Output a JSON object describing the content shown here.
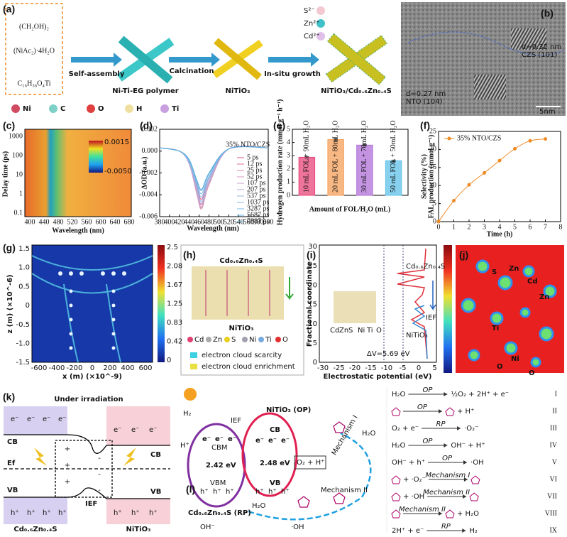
{
  "figure": {
    "panel_labels": [
      "(a)",
      "(b)",
      "(c)",
      "(d)",
      "(e)",
      "(f)",
      "(g)",
      "(h)",
      "(i)",
      "(j)",
      "(k)",
      "(l)"
    ],
    "a": {
      "reagents": [
        "(CH₂OH)₂",
        "(NiAc₂)·4H₂O",
        "C₁₆H₃₆O₄Ti"
      ],
      "steps": [
        "Self-assembly",
        "Calcination",
        "In-situ growth"
      ],
      "products": [
        "Ni-Ti-EG polymer",
        "NiTiO₃",
        "NiTiO₃/Cd₀.₆Zn₀.₄S"
      ],
      "ions": [
        "S²⁻",
        "Zn²⁺",
        "Cd²⁺"
      ],
      "atoms": [
        "Ni",
        "C",
        "O",
        "H",
        "Ti"
      ]
    },
    "b": {
      "d1": "d=0.32 nm",
      "p1": "CZS (101)",
      "d2": "d=0.27 nm",
      "p2": "NTO (104)",
      "scale": "5nm"
    },
    "c": {
      "yticks": [
        "1000",
        "100",
        "10",
        "1",
        "0.1"
      ],
      "xticks": [
        "400",
        "440",
        "480",
        "520",
        "560",
        "600",
        "640",
        "680"
      ],
      "ylabel": "Delay time (ps)",
      "xlabel": "Wavelength (nm)",
      "cbar": [
        "0.0015",
        "-0.0050"
      ]
    },
    "g": {
      "xticks": [
        "-600",
        "-400",
        "-200",
        "0",
        "200",
        "400",
        "600"
      ],
      "yticks": [
        "1.5",
        "1.0",
        "0.5",
        "0",
        "-0.5",
        "-1.0",
        "-1.5"
      ],
      "cbar": [
        "2.5",
        "2.08",
        "1.67",
        "1.25",
        "0.83",
        "0.42",
        "0"
      ],
      "xlabel": "x (m) (×10^-9)",
      "ylabel": "z (m) (×10^-6)"
    },
    "h": {
      "top": "Cd₀.₆Zn₀.₄S",
      "bottom": "NiTiO₃",
      "atoms": [
        "Cd",
        "Zn",
        "S",
        "Ni",
        "Ti",
        "O"
      ],
      "legend": [
        "electron cloud scarcity",
        "electron cloud enrichment"
      ]
    },
    "i": {
      "yticks": [
        "30",
        "25",
        "20",
        "15",
        "10",
        "5",
        "0"
      ],
      "xticks": [
        "-30",
        "-25",
        "-20",
        "-15",
        "-10",
        "-5",
        "0",
        "5"
      ],
      "ylabel": "Fractional coordinate",
      "xlabel": "Electrostatic potential (eV)",
      "top": "Cd₀.₆Zn₀.₄S",
      "bottom": "NiTiO₃",
      "ief": "IEF",
      "dv": "ΔV=5.69 eV",
      "atoms": [
        "Cd",
        "Zn",
        "S",
        "Ni",
        "Ti",
        "O"
      ]
    },
    "j": {
      "atoms": [
        "Zn",
        "S",
        "Cd",
        "Zn",
        "Ti",
        "Ni",
        "O",
        "O"
      ]
    },
    "k": {
      "title": "Under irradiation",
      "cb": "CB",
      "vb": "VB",
      "ef": "Ef",
      "ief": "IEF",
      "left": "Cd₀.₆Zn₀.₄S",
      "right": "NiTiO₃",
      "e": "e⁻",
      "h": "h⁺",
      "plus": "+",
      "minus": "-"
    },
    "l": {
      "h2": "H₂",
      "hp": "H⁺",
      "ief": "IEF",
      "op": "NiTiO₃ (OP)",
      "cb": "CB",
      "vb": "VB",
      "cbm": "CBM",
      "vbm": "VBM",
      "g1": "2.42 eV",
      "g2": "2.48 eV",
      "rp": "Cd₀.₆Zn₀.₄S (RP)",
      "o2h": "O₂ + H⁺",
      "m1": "Mechanism I",
      "m2": "Mechanism II",
      "h2o": "H₂O",
      "oh": "OH⁻",
      "ohr": "·OH",
      "e": "e⁻",
      "h": "h⁺"
    },
    "equations": [
      {
        "lhs": "H₂O",
        "arrow": "OP",
        "rhs": "½O₂ + 2H⁺ + e⁻",
        "num": "I"
      },
      {
        "arrow": "OP",
        "rhs": "+ H⁺",
        "num": "II"
      },
      {
        "lhs": "O₂ + e⁻",
        "arrow": "RP",
        "rhs": "·O₂⁻",
        "num": "III"
      },
      {
        "lhs": "H₂O",
        "arrow": "OP",
        "rhs": "OH⁻ + H⁺",
        "num": "IV"
      },
      {
        "lhs": "OH⁻ + h⁺",
        "arrow": "OP",
        "rhs": "·OH",
        "num": "V"
      },
      {
        "lhs": "+ ·O₂⁻",
        "arrow": "Mechanism I",
        "num": "VI"
      },
      {
        "lhs": "+ ·OH",
        "arrow": "Mechanism II",
        "num": "VII"
      },
      {
        "arrow": "Mechanism II",
        "rhs": "+ H₂O",
        "num": "VIII"
      },
      {
        "lhs": "2H⁺ + e⁻",
        "arrow": "RP",
        "rhs": "H₂",
        "num": "IX"
      }
    ]
  },
  "chart_data": [
    {
      "type": "line",
      "ylabel": "ΔOD (a.u.)",
      "xlabel": "Wavelength (nm)",
      "annotation": "35% NTO/CZS",
      "x": [
        380,
        420,
        440,
        455,
        465,
        480,
        520,
        600
      ],
      "xlim": [
        380,
        600
      ],
      "xticks": [
        380,
        400,
        420,
        440,
        460,
        480,
        500,
        520,
        540,
        560,
        580,
        600
      ],
      "ylim": [
        -0.006,
        0.002
      ],
      "yticks": [
        0.002,
        {
          "value": 0,
          "label": "0.000"
        },
        -0.002,
        -0.004,
        -0.006
      ],
      "series": [
        {
          "name": "5 ps",
          "color": "#e25a82",
          "values": [
            0.0003,
            0,
            -0.001,
            -0.0032,
            -0.0044,
            -0.0026,
            0.0002,
            0.0003
          ]
        },
        {
          "name": "12 ps",
          "color": "#e46f93",
          "values": [
            0.0003,
            0,
            -0.0011,
            -0.0036,
            -0.0049,
            -0.0029,
            0.0002,
            0.0003
          ]
        },
        {
          "name": "25 ps",
          "color": "#e388a5",
          "values": [
            0.0003,
            0,
            -0.0012,
            -0.0038,
            -0.0052,
            -0.003,
            0.0002,
            0.0003
          ]
        },
        {
          "name": "52 ps",
          "color": "#d99bb8",
          "values": [
            0.0003,
            0,
            -0.0012,
            -0.0039,
            -0.0053,
            -0.0031,
            0.0002,
            0.0003
          ]
        },
        {
          "name": "107 ps",
          "color": "#c7a3cb",
          "values": [
            0.0003,
            0,
            -0.0012,
            -0.0037,
            -0.0051,
            -0.0029,
            0.0002,
            0.0003
          ]
        },
        {
          "name": "207 ps",
          "color": "#b3abd8",
          "values": [
            0.0003,
            0,
            -0.0011,
            -0.0035,
            -0.0048,
            -0.0028,
            0.0002,
            0.0003
          ]
        },
        {
          "name": "537 ps",
          "color": "#9fb1e0",
          "values": [
            0.0003,
            0,
            -0.0011,
            -0.0033,
            -0.0046,
            -0.0026,
            0.0002,
            0.0003
          ]
        },
        {
          "name": "1037 ps",
          "color": "#8ab6e6",
          "values": [
            0.0003,
            0,
            -0.001,
            -0.003,
            -0.0042,
            -0.0024,
            0.0002,
            0.0003
          ]
        },
        {
          "name": "3287 ps",
          "color": "#79b8e8",
          "values": [
            0.0003,
            0,
            -0.0009,
            -0.0029,
            -0.0039,
            -0.0023,
            0.0002,
            0.0003
          ]
        },
        {
          "name": "5687 ps",
          "color": "#6ab4e6",
          "values": [
            0.0003,
            0,
            -0.0008,
            -0.0027,
            -0.0036,
            -0.0021,
            0.0002,
            0.0003
          ]
        },
        {
          "name": "7887 ps",
          "color": "#5aaede",
          "values": [
            0.0003,
            0,
            -0.0008,
            -0.0026,
            -0.0035,
            -0.002,
            0.0002,
            0.0003
          ]
        }
      ]
    },
    {
      "type": "bar",
      "ylabel": "Hydrogen production rate (mmol g⁻¹ h⁻¹)",
      "xlabel": "Amount of FOL/H₂O (mL)",
      "categories": [
        "10 mL FOL + 90mL H₂O",
        "20 mL FOL + 80mL H₂O",
        "30 mL FOL + 70mL H₂O",
        "50 mL FOL + 50mL H₂O"
      ],
      "values": [
        2.88,
        4.22,
        3.8,
        2.62
      ],
      "errors": [
        0.06,
        0.08,
        0.06,
        0.05
      ],
      "colors": [
        "#e8457a",
        "#f5a05a",
        "#b06fd8",
        "#5fc2e8"
      ],
      "ylim": [
        0,
        5
      ],
      "yticks": [
        0,
        1,
        2,
        3,
        4,
        5
      ]
    },
    {
      "type": "line",
      "ylabel": "Selectivity (%)",
      "ylabel2": "FAL production (mmol g⁻¹)",
      "xlabel": "Time (h)",
      "legend": "top-left",
      "x": [
        0,
        1,
        2,
        3,
        4,
        5,
        6,
        7
      ],
      "xlim": [
        0,
        8
      ],
      "xticks": [
        0,
        1,
        2,
        3,
        4,
        5,
        6,
        7,
        8
      ],
      "ylim": [
        0,
        25
      ],
      "yticks": [
        0,
        5,
        10,
        15,
        20,
        25
      ],
      "series": [
        {
          "name": "35% NTO/CZS",
          "color": "#f08a24",
          "values": [
            0,
            5.8,
            10.2,
            13.5,
            16.9,
            20.2,
            22.4,
            22.9
          ]
        }
      ]
    }
  ]
}
